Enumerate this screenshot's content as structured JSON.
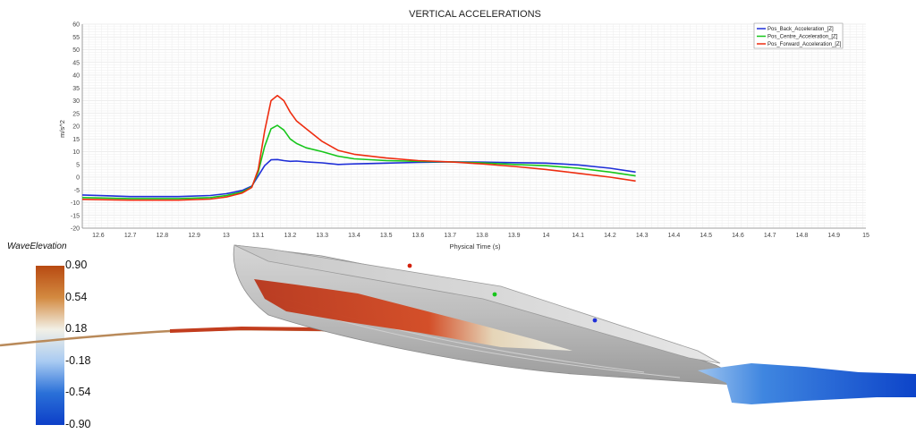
{
  "chart_data": {
    "type": "line",
    "title": "VERTICAL ACCELERATIONS",
    "xlabel": "Physical Time (s)",
    "ylabel": "m/s^2",
    "xlim": [
      12.55,
      15.0
    ],
    "ylim": [
      -20,
      60
    ],
    "xticks": [
      "12.6",
      "12.7",
      "12.8",
      "12.9",
      "13",
      "13.1",
      "13.2",
      "13.3",
      "13.4",
      "13.5",
      "13.6",
      "13.7",
      "13.8",
      "13.9",
      "14",
      "14.1",
      "14.2",
      "14.3",
      "14.4",
      "14.5",
      "14.6",
      "14.7",
      "14.8",
      "14.9",
      "15"
    ],
    "yticks": [
      "-20",
      "-15",
      "-10",
      "-5",
      "0",
      "5",
      "10",
      "15",
      "20",
      "25",
      "30",
      "35",
      "40",
      "45",
      "50",
      "55",
      "60"
    ],
    "grid": true,
    "legend_position": "top-right",
    "series": [
      {
        "name": "Pos_Back_Acceleration_[Z]",
        "color": "#1f2fd8",
        "x": [
          12.55,
          12.7,
          12.85,
          12.95,
          13.0,
          13.05,
          13.08,
          13.1,
          13.12,
          13.14,
          13.16,
          13.18,
          13.2,
          13.22,
          13.25,
          13.3,
          13.35,
          13.4,
          13.5,
          13.6,
          13.7,
          13.8,
          13.9,
          14.0,
          14.1,
          14.2,
          14.28
        ],
        "y": [
          -7,
          -7.6,
          -7.6,
          -7.2,
          -6.5,
          -5.2,
          -3.5,
          0.5,
          4.5,
          6.8,
          6.9,
          6.5,
          6.2,
          6.3,
          6.0,
          5.6,
          5.0,
          5.2,
          5.5,
          5.8,
          6.0,
          5.9,
          5.7,
          5.5,
          4.8,
          3.5,
          2.0
        ]
      },
      {
        "name": "Pos_Centre_Acceleration_[Z]",
        "color": "#17c61b",
        "x": [
          12.55,
          12.7,
          12.85,
          12.95,
          13.0,
          13.05,
          13.08,
          13.1,
          13.12,
          13.14,
          13.16,
          13.18,
          13.2,
          13.22,
          13.25,
          13.3,
          13.35,
          13.4,
          13.5,
          13.6,
          13.7,
          13.8,
          13.9,
          14.0,
          14.1,
          14.2,
          14.28
        ],
        "y": [
          -8,
          -8.4,
          -8.4,
          -8.0,
          -7.2,
          -5.8,
          -3.8,
          2.0,
          12.0,
          19.0,
          20.3,
          18.5,
          15.0,
          13.2,
          11.5,
          10.0,
          8.2,
          7.2,
          6.5,
          6.2,
          6.0,
          5.6,
          5.0,
          4.5,
          3.5,
          2.0,
          0.5
        ]
      },
      {
        "name": "Pos_Forward_Acceleration_[Z]",
        "color": "#ee2d10",
        "x": [
          12.55,
          12.7,
          12.85,
          12.95,
          13.0,
          13.05,
          13.08,
          13.1,
          13.12,
          13.14,
          13.16,
          13.18,
          13.2,
          13.22,
          13.25,
          13.3,
          13.35,
          13.4,
          13.5,
          13.6,
          13.7,
          13.8,
          13.9,
          14.0,
          14.1,
          14.2,
          14.28
        ],
        "y": [
          -8.7,
          -9.0,
          -9.0,
          -8.6,
          -7.8,
          -6.2,
          -4.0,
          3.0,
          18.0,
          30.0,
          32.0,
          30.0,
          25.5,
          22.0,
          19.0,
          14.0,
          10.5,
          9.0,
          7.5,
          6.5,
          6.0,
          5.2,
          4.2,
          3.0,
          1.5,
          0.0,
          -1.5
        ]
      }
    ]
  },
  "scene": {
    "colorbar_title": "WaveElevation",
    "colorbar_ticks": [
      "0.90",
      "0.54",
      "0.18",
      "-0.18",
      "-0.54",
      "-0.90"
    ],
    "colorbar_colors": [
      "#b84a12",
      "#d38a40",
      "#f2f0e6",
      "#a9cbf2",
      "#2a70d8",
      "#0d3fc8"
    ],
    "sensor_points": [
      {
        "label": "back",
        "color": "#1f2fd8"
      },
      {
        "label": "centre",
        "color": "#17c61b"
      },
      {
        "label": "forward",
        "color": "#d3200c"
      }
    ]
  }
}
